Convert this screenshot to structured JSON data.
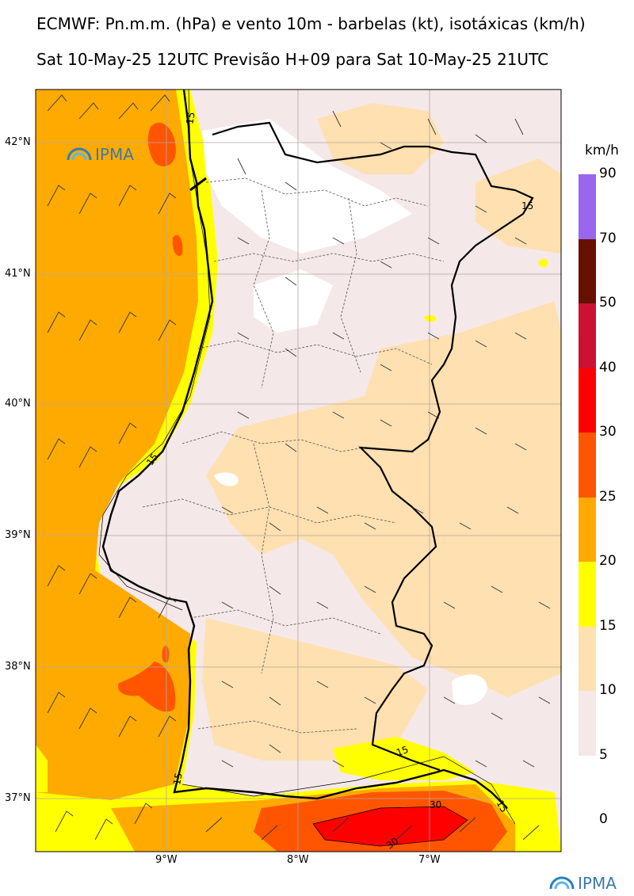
{
  "title_line1": "ECMWF: Pn.m.m. (hPa) e vento 10m - barbelas (kt), isotáxicas (km/h)",
  "title_line2": "Sat 10-May-25 12UTC Previsão H+09 para Sat 10-May-25 21UTC",
  "lat_labels": [
    "42°N",
    "41°N",
    "40°N",
    "39°N",
    "38°N",
    "37°N"
  ],
  "lon_labels": [
    "9°W",
    "8°W",
    "7°W"
  ],
  "contour_labels": [
    "15",
    "15",
    "15",
    "15",
    "15",
    "15",
    "30",
    "30"
  ],
  "logo_text": "IPMA",
  "colorbar": {
    "unit": "km/h",
    "levels": [
      "90",
      "70",
      "50",
      "40",
      "30",
      "25",
      "20",
      "15",
      "10",
      "5",
      "0"
    ],
    "colors": [
      "#9966ee",
      "#661100",
      "#cc1133",
      "#ff0000",
      "#ff5500",
      "#ffaa00",
      "#ffff00",
      "#ffe0b0",
      "#f5e8e8"
    ]
  }
}
